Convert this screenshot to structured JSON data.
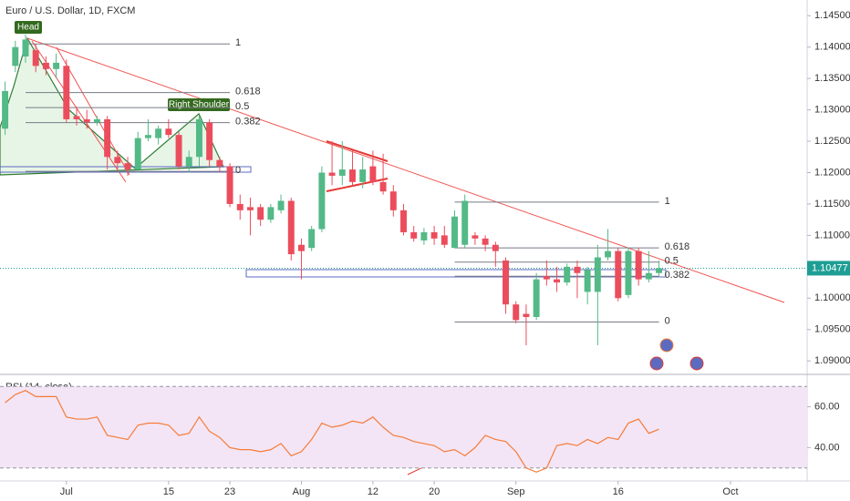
{
  "chart_data": [
    {
      "type": "candlestick",
      "title": "Euro / U.S. Dollar, 1D, FXCM",
      "up_color": "#53b987",
      "down_color": "#eb4d5c",
      "open": [
        1.127,
        1.137,
        1.1385,
        1.1395,
        1.1375,
        1.1365,
        1.137,
        1.129,
        1.1285,
        1.128,
        1.1285,
        1.1225,
        1.1215,
        1.1205,
        1.1255,
        1.1255,
        1.127,
        1.126,
        1.121,
        1.1225,
        1.128,
        1.122,
        1.121,
        1.115,
        1.1145,
        1.1145,
        1.1125,
        1.114,
        1.1155,
        1.1085,
        1.108,
        1.111,
        1.12,
        1.1195,
        1.1205,
        1.1185,
        1.121,
        1.1185,
        1.117,
        1.114,
        1.1105,
        1.1092,
        1.1105,
        1.11,
        1.108,
        1.1085,
        1.11,
        1.1095,
        1.1085,
        1.106,
        1.099,
        1.0975,
        1.097,
        1.1035,
        1.103,
        1.1025,
        1.105,
        1.101,
        1.101,
        1.1065,
        1.1075,
        1.1005,
        1.1075,
        1.103,
        1.104
      ],
      "high": [
        1.1345,
        1.141,
        1.142,
        1.1405,
        1.1385,
        1.139,
        1.138,
        1.1305,
        1.13,
        1.129,
        1.129,
        1.1235,
        1.1225,
        1.1265,
        1.1285,
        1.1275,
        1.1285,
        1.1265,
        1.1235,
        1.129,
        1.1285,
        1.1225,
        1.1215,
        1.1165,
        1.116,
        1.115,
        1.115,
        1.1165,
        1.116,
        1.1095,
        1.1115,
        1.121,
        1.125,
        1.125,
        1.1235,
        1.1225,
        1.1235,
        1.123,
        1.118,
        1.115,
        1.1115,
        1.1112,
        1.1115,
        1.1115,
        1.114,
        1.1165,
        1.1105,
        1.11,
        1.109,
        1.1065,
        1.0995,
        1.099,
        1.104,
        1.106,
        1.105,
        1.1055,
        1.106,
        1.105,
        1.1085,
        1.111,
        1.108,
        1.108,
        1.108,
        1.1075,
        1.106
      ],
      "low": [
        1.126,
        1.136,
        1.1375,
        1.136,
        1.1355,
        1.135,
        1.128,
        1.1275,
        1.127,
        1.1275,
        1.1205,
        1.1205,
        1.1195,
        1.12,
        1.125,
        1.1245,
        1.1255,
        1.1205,
        1.12,
        1.121,
        1.121,
        1.12,
        1.1145,
        1.1125,
        1.11,
        1.1115,
        1.112,
        1.1135,
        1.106,
        1.103,
        1.1075,
        1.1105,
        1.118,
        1.118,
        1.118,
        1.1175,
        1.118,
        1.1165,
        1.113,
        1.11,
        1.109,
        1.1085,
        1.1085,
        1.108,
        1.108,
        1.108,
        1.1085,
        1.1075,
        1.105,
        1.0975,
        1.096,
        1.0925,
        1.0965,
        1.102,
        1.101,
        1.102,
        1.1,
        1.099,
        1.0925,
        1.106,
        1.0995,
        1.1,
        1.102,
        1.1025,
        1.1035
      ],
      "close": [
        1.133,
        1.14,
        1.1412,
        1.137,
        1.1365,
        1.1375,
        1.1285,
        1.1285,
        1.128,
        1.1285,
        1.1225,
        1.1215,
        1.1205,
        1.1255,
        1.126,
        1.127,
        1.126,
        1.121,
        1.1225,
        1.1285,
        1.122,
        1.121,
        1.115,
        1.114,
        1.114,
        1.1125,
        1.1145,
        1.1155,
        1.107,
        1.1075,
        1.111,
        1.12,
        1.1195,
        1.1205,
        1.1185,
        1.1205,
        1.1185,
        1.117,
        1.114,
        1.1105,
        1.1095,
        1.1105,
        1.1095,
        1.1085,
        1.113,
        1.1155,
        1.1095,
        1.1085,
        1.1075,
        1.099,
        1.0965,
        1.097,
        1.103,
        1.103,
        1.1025,
        1.105,
        1.104,
        1.1045,
        1.1065,
        1.1075,
        1.1,
        1.1075,
        1.103,
        1.104,
        1.10477
      ],
      "last_price": {
        "value": 1.10477,
        "label": "1.10477"
      },
      "last_price_color": "#1e9e94",
      "xlim": [
        -0.5,
        78.5
      ],
      "xticks": [
        {
          "value": 6,
          "label": "Jul"
        },
        {
          "value": 16,
          "label": "15"
        },
        {
          "value": 22,
          "label": "23"
        },
        {
          "value": 29,
          "label": "Aug"
        },
        {
          "value": 36,
          "label": "12"
        },
        {
          "value": 42,
          "label": "20"
        },
        {
          "value": 50,
          "label": "Sep"
        },
        {
          "value": 60,
          "label": "16"
        },
        {
          "value": 71,
          "label": "Oct"
        }
      ],
      "ylim": [
        1.088,
        1.1475
      ],
      "yticks": [
        {
          "value": 1.09,
          "label": "1.09000"
        },
        {
          "value": 1.095,
          "label": "1.09500"
        },
        {
          "value": 1.1,
          "label": "1.10000"
        },
        {
          "value": 1.105,
          "label": "1.10500"
        },
        {
          "value": 1.11,
          "label": "1.11000"
        },
        {
          "value": 1.115,
          "label": "1.11500"
        },
        {
          "value": 1.12,
          "label": "1.12000"
        },
        {
          "value": 1.125,
          "label": "1.12500"
        },
        {
          "value": 1.13,
          "label": "1.13000"
        },
        {
          "value": 1.135,
          "label": "1.13500"
        },
        {
          "value": 1.14,
          "label": "1.14000"
        },
        {
          "value": 1.145,
          "label": "1.14500"
        }
      ],
      "annotations": [
        "Head",
        "Right Shoulder"
      ],
      "fibs": [
        {
          "from": 2,
          "to": 22,
          "high": 1.1405,
          "low": 1.1202,
          "levels": [
            1,
            0.618,
            0.5,
            0.382,
            0
          ]
        },
        {
          "from": 44,
          "to": 64,
          "high": 1.1153,
          "low": 1.0962,
          "levels": [
            1,
            0.618,
            0.5,
            0.382,
            0
          ]
        }
      ]
    },
    {
      "type": "line",
      "title": "RSI (14, close)",
      "color": "#f57c3a",
      "values": [
        62,
        66,
        68,
        65,
        65,
        65,
        55,
        54,
        54,
        55,
        46,
        45,
        44,
        51,
        52,
        52,
        51,
        46,
        47,
        55,
        48,
        45,
        40,
        39,
        39,
        38,
        39,
        42,
        36,
        38,
        44,
        52,
        50,
        51,
        53,
        52,
        55,
        50,
        46,
        45,
        43,
        42,
        41,
        38,
        39,
        36,
        40,
        46,
        44,
        43,
        38,
        30,
        28,
        30,
        41,
        42,
        41,
        44,
        42,
        45,
        44,
        52,
        54,
        47,
        49
      ],
      "ylim": [
        25,
        75
      ],
      "band": [
        30,
        70
      ],
      "band_color": "#f3e5f5",
      "yticks": [
        {
          "value": 40,
          "label": "40.00"
        },
        {
          "value": 60,
          "label": "60.00"
        }
      ]
    }
  ]
}
